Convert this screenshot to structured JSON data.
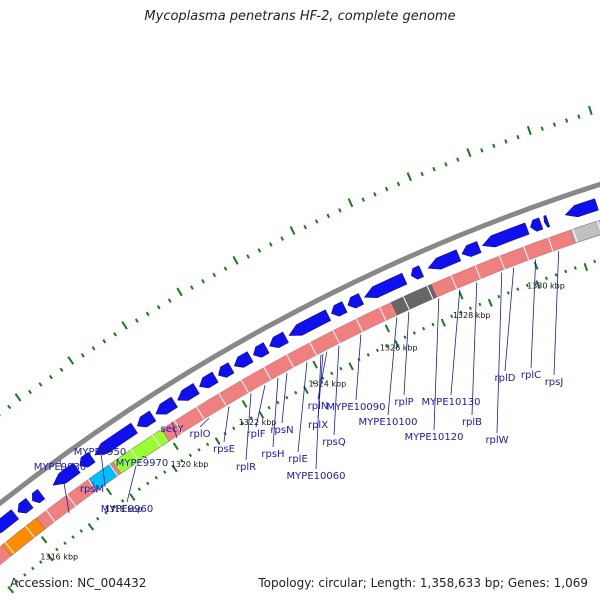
{
  "title": "Mycoplasma penetrans HF-2, complete genome",
  "footer": {
    "accession": "Accession: NC_004432",
    "summary": "Topology: circular; Length: 1,358,633 bp; Genes: 1,069"
  },
  "colors": {
    "gene_arrow": "#1010ee",
    "feature_pink": "#f08080",
    "feature_orange": "#ff8c00",
    "feature_cyan": "#00bfff",
    "feature_lime": "#99ff33",
    "feature_darkgray": "#666666",
    "feature_lightgray": "#c0c0c0",
    "tick": "#1a7a1a",
    "label": "#1a1aaa",
    "backbone": "#888888"
  },
  "kbp_ticks": [
    "1316 kbp",
    "1318 kbp",
    "1320 kbp",
    "1322 kbp",
    "1324 kbp",
    "1326 kbp",
    "1328 kbp",
    "1330 kbp",
    "1332 kbp"
  ],
  "gene_labels": [
    "MYPE9930",
    "rpsM",
    "MYPE9950",
    "MYPE9960",
    "MYPE9970",
    "secY",
    "rplO",
    "rpsE",
    "rplR",
    "rplF",
    "rpsH",
    "rpsN",
    "rplE",
    "rplX",
    "MYPE10060",
    "rplN",
    "rpsQ",
    "MYPE10090",
    "MYPE10100",
    "rplP",
    "MYPE10120",
    "MYPE10130",
    "rplB",
    "rplW",
    "rplD",
    "rplC",
    "rpsJ"
  ]
}
